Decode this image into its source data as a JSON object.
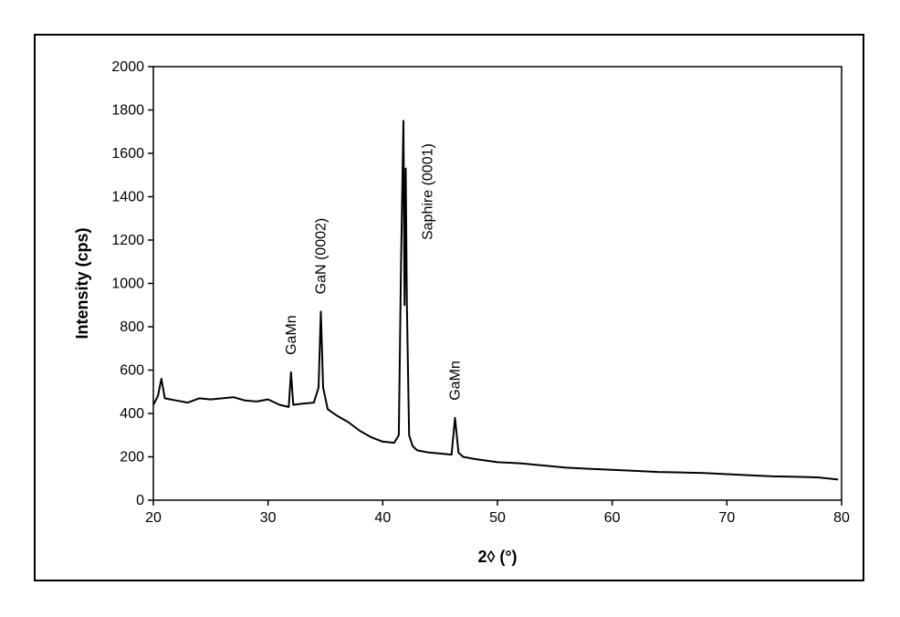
{
  "chart_data": {
    "type": "line",
    "title": "",
    "xlabel": "2◊ (°)",
    "ylabel": "Intensity (cps)",
    "xlim": [
      20,
      80
    ],
    "ylim": [
      0,
      2000
    ],
    "x_ticks": [
      "20",
      "30",
      "40",
      "50",
      "60",
      "70",
      "80"
    ],
    "y_ticks": [
      "0",
      "200",
      "400",
      "600",
      "800",
      "1000",
      "1200",
      "1400",
      "1600",
      "1800",
      "2000"
    ],
    "grid": false,
    "legend": "none",
    "line_color": "#000000",
    "series": [
      {
        "x": [
          20.0,
          20.4,
          20.7,
          21.0,
          22.0,
          23.0,
          24.0,
          25.0,
          26.0,
          27.0,
          28.0,
          29.0,
          30.0,
          31.0,
          31.8,
          32.0,
          32.2,
          33.0,
          34.0,
          34.4,
          34.6,
          34.8,
          35.2,
          36.0,
          37.0,
          38.0,
          39.0,
          40.0,
          41.0,
          41.4,
          41.6,
          41.8,
          41.9,
          42.0,
          42.1,
          42.3,
          42.6,
          43.0,
          44.0,
          45.0,
          46.0,
          46.3,
          46.6,
          47.0,
          48.0,
          50.0,
          52.0,
          54.0,
          56.0,
          58.0,
          60.0,
          62.0,
          64.0,
          66.0,
          68.0,
          70.0,
          72.0,
          74.0,
          76.0,
          78.0,
          79.7
        ],
        "y": [
          440,
          480,
          560,
          470,
          460,
          450,
          470,
          465,
          470,
          475,
          460,
          455,
          465,
          440,
          430,
          590,
          440,
          445,
          450,
          520,
          870,
          520,
          420,
          390,
          360,
          320,
          290,
          270,
          265,
          300,
          1100,
          1750,
          900,
          1530,
          920,
          300,
          250,
          230,
          220,
          215,
          210,
          380,
          220,
          200,
          190,
          175,
          170,
          160,
          150,
          145,
          140,
          135,
          130,
          128,
          125,
          120,
          115,
          110,
          108,
          105,
          95
        ]
      }
    ],
    "annotations": [
      {
        "text": "GaMn",
        "x": 32.4,
        "y": 670
      },
      {
        "text": "GaN (0002)",
        "x": 35.0,
        "y": 950
      },
      {
        "text": "Saphire (0001)",
        "x": 44.3,
        "y": 1200
      },
      {
        "text": "GaMn",
        "x": 46.7,
        "y": 460
      }
    ]
  }
}
